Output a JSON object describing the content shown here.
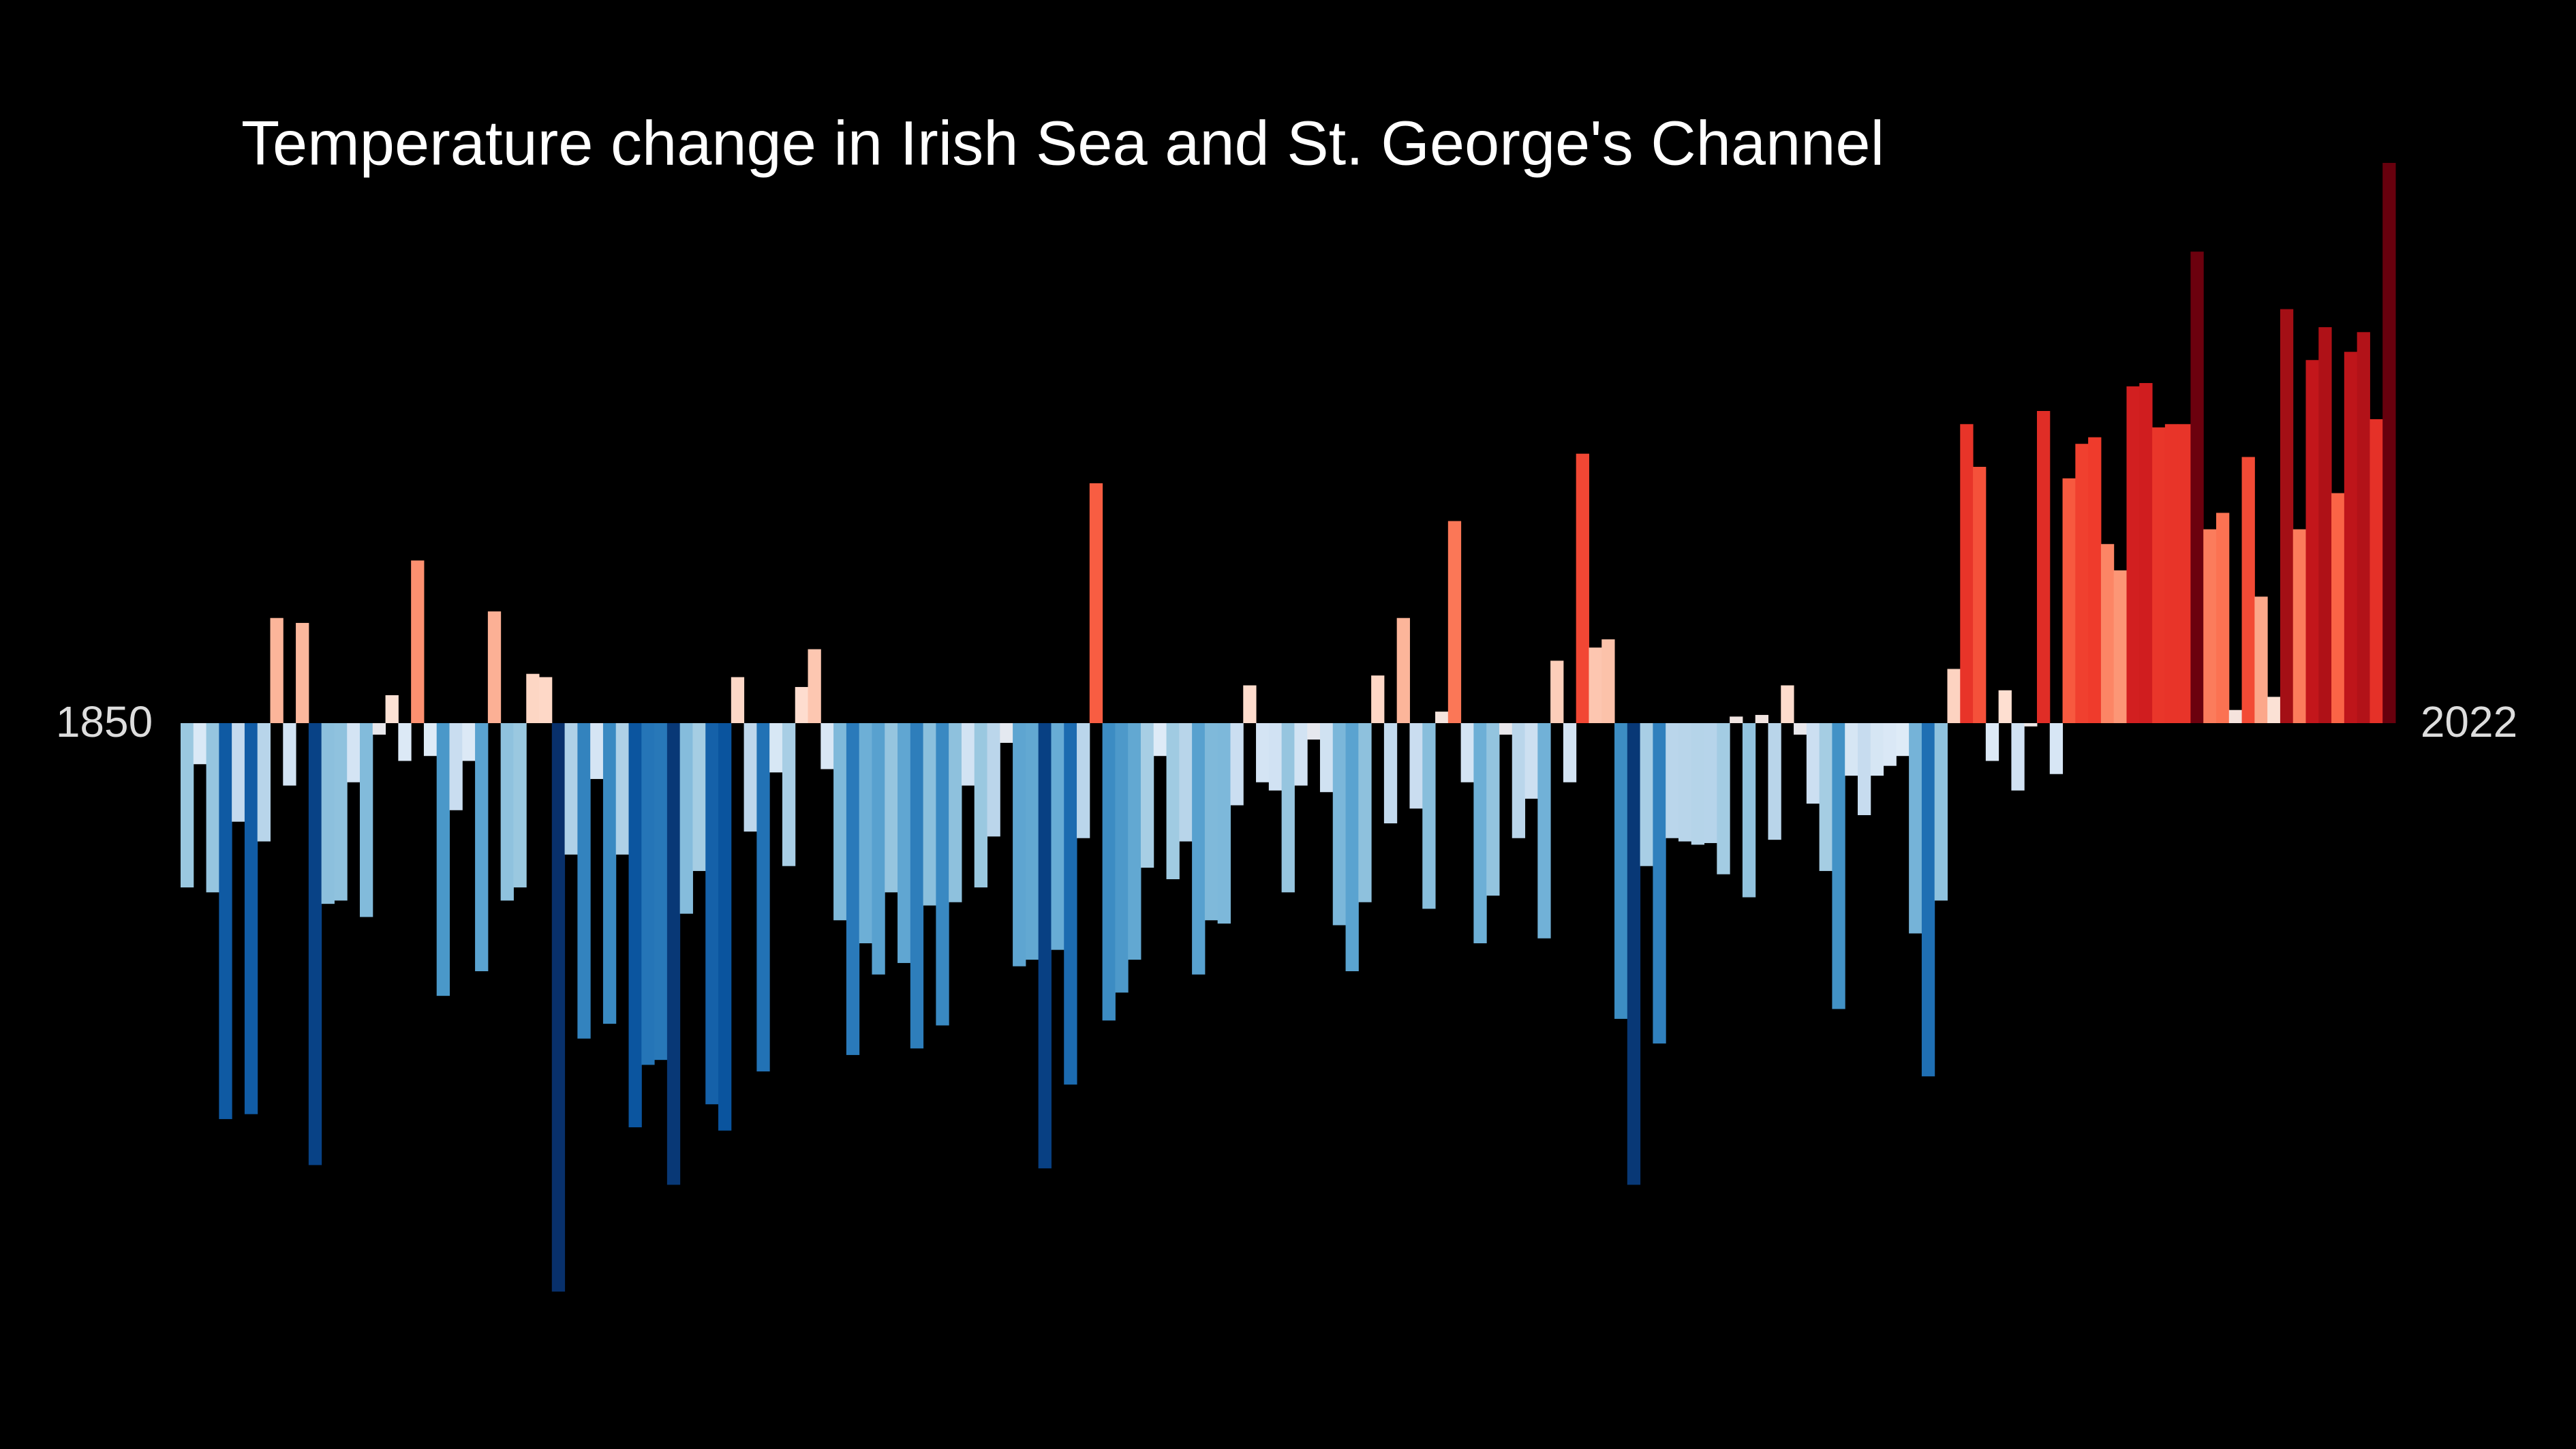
{
  "chart_data": {
    "type": "bar",
    "title": "Temperature change in Irish Sea and St. George's Channel",
    "x": [
      1850,
      1851,
      1852,
      1853,
      1854,
      1855,
      1856,
      1857,
      1858,
      1859,
      1860,
      1861,
      1862,
      1863,
      1864,
      1865,
      1866,
      1867,
      1868,
      1869,
      1870,
      1871,
      1872,
      1873,
      1874,
      1875,
      1876,
      1877,
      1878,
      1879,
      1880,
      1881,
      1882,
      1883,
      1884,
      1885,
      1886,
      1887,
      1888,
      1889,
      1890,
      1891,
      1892,
      1893,
      1894,
      1895,
      1896,
      1897,
      1898,
      1899,
      1900,
      1901,
      1902,
      1903,
      1904,
      1905,
      1906,
      1907,
      1908,
      1909,
      1910,
      1911,
      1912,
      1913,
      1914,
      1915,
      1916,
      1917,
      1918,
      1919,
      1920,
      1921,
      1922,
      1923,
      1924,
      1925,
      1926,
      1927,
      1928,
      1929,
      1930,
      1931,
      1932,
      1933,
      1934,
      1935,
      1936,
      1937,
      1938,
      1939,
      1940,
      1941,
      1942,
      1943,
      1944,
      1945,
      1946,
      1947,
      1948,
      1949,
      1950,
      1951,
      1952,
      1953,
      1954,
      1955,
      1956,
      1957,
      1958,
      1959,
      1960,
      1961,
      1962,
      1963,
      1964,
      1965,
      1966,
      1967,
      1968,
      1969,
      1970,
      1971,
      1972,
      1973,
      1974,
      1975,
      1976,
      1977,
      1978,
      1979,
      1980,
      1981,
      1982,
      1983,
      1984,
      1985,
      1986,
      1987,
      1988,
      1989,
      1990,
      1991,
      1992,
      1993,
      1994,
      1995,
      1996,
      1997,
      1998,
      1999,
      2000,
      2001,
      2002,
      2003,
      2004,
      2005,
      2006,
      2007,
      2008,
      2009,
      2010,
      2011,
      2012,
      2013,
      2014,
      2015,
      2016,
      2017,
      2018,
      2019,
      2020,
      2021,
      2022
    ],
    "values": [
      -1.0,
      -0.25,
      -1.03,
      -2.41,
      -0.6,
      -2.38,
      -0.72,
      0.64,
      -0.38,
      0.61,
      -2.69,
      -1.1,
      -1.08,
      -0.36,
      -1.18,
      -0.07,
      0.17,
      -0.23,
      0.99,
      -0.2,
      -1.66,
      -0.53,
      -0.23,
      -1.51,
      0.68,
      -1.08,
      -1.0,
      0.3,
      0.28,
      -3.46,
      -0.8,
      -1.92,
      -0.34,
      -1.83,
      -0.8,
      -2.46,
      -2.08,
      -2.05,
      -2.81,
      -1.16,
      -0.9,
      -2.32,
      -2.48,
      0.28,
      -0.66,
      -2.12,
      -0.3,
      -0.87,
      0.22,
      0.45,
      -0.28,
      -1.2,
      -2.02,
      -1.34,
      -1.53,
      -1.03,
      -1.46,
      -1.98,
      -1.11,
      -1.84,
      -1.09,
      -0.38,
      -1.0,
      -0.69,
      -0.12,
      -1.48,
      -1.44,
      -2.71,
      -1.38,
      -2.2,
      -0.7,
      1.46,
      -1.81,
      -1.64,
      -1.44,
      -0.88,
      -0.2,
      -0.95,
      -0.72,
      -1.53,
      -1.2,
      -1.22,
      -0.5,
      0.23,
      -0.36,
      -0.41,
      -1.03,
      -0.38,
      -0.1,
      -0.42,
      -1.23,
      -1.51,
      -1.09,
      0.29,
      -0.61,
      0.64,
      -0.52,
      -1.13,
      0.07,
      1.23,
      -0.36,
      -1.34,
      -1.05,
      -0.07,
      -0.7,
      -0.46,
      -1.31,
      0.38,
      -0.36,
      1.64,
      0.46,
      0.51,
      -1.8,
      -2.81,
      -0.87,
      -1.95,
      -0.7,
      -0.72,
      -0.74,
      -0.73,
      -0.92,
      0.04,
      -1.06,
      0.05,
      -0.71,
      0.23,
      -0.07,
      -0.49,
      -0.9,
      -1.74,
      -0.32,
      -0.56,
      -0.32,
      -0.26,
      -0.2,
      -1.28,
      -2.15,
      -1.08,
      0.33,
      1.82,
      1.56,
      -0.23,
      0.2,
      -0.41,
      -0.02,
      1.9,
      -0.31,
      1.49,
      1.7,
      1.74,
      1.09,
      0.93,
      2.05,
      2.07,
      1.8,
      1.82,
      1.82,
      2.87,
      1.18,
      1.28,
      0.08,
      1.62,
      0.77,
      0.16,
      2.52,
      1.18,
      2.21,
      2.41,
      1.4,
      2.26,
      2.38,
      1.85,
      3.41
    ],
    "xlim": [
      1850,
      2023
    ],
    "ylim": [
      -3.8,
      3.8
    ],
    "colormap": [
      "#08306b",
      "#08519c",
      "#2171b5",
      "#4292c6",
      "#6baed6",
      "#9ecae1",
      "#c6dbef",
      "#deebf7",
      "#fee0d2",
      "#fcbba1",
      "#fc9272",
      "#fb6a4a",
      "#ef3b2c",
      "#cb181d",
      "#a50f15",
      "#67000d"
    ],
    "color_limits": [
      -2.9,
      2.9
    ]
  }
}
